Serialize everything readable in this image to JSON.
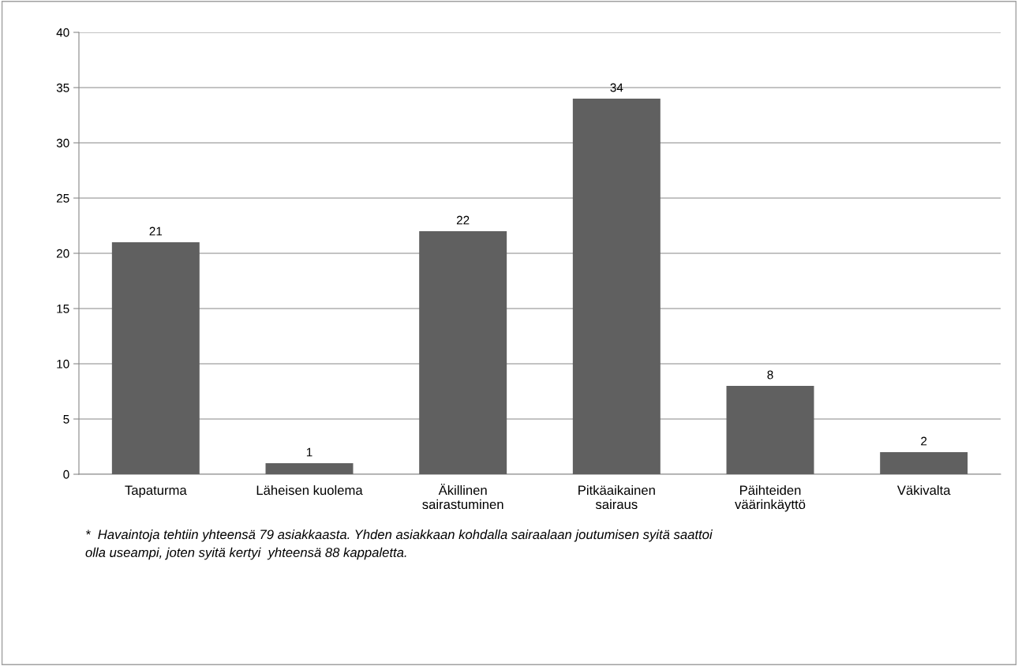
{
  "chart_data": {
    "type": "bar",
    "categories": [
      "Tapaturma",
      "Läheisen kuolema",
      "Äkillinen\nsairastuminen",
      "Pitkäaikainen\nsairaus",
      "Päihteiden\nväärinkäyttö",
      "Väkivalta"
    ],
    "values": [
      21,
      1,
      22,
      34,
      8,
      2
    ],
    "color": "#606060",
    "ylim": [
      0,
      40
    ],
    "yticks": [
      0,
      5,
      10,
      15,
      20,
      25,
      30,
      35,
      40
    ],
    "grid": "y",
    "data_labels": true,
    "legend": false,
    "annotations": [
      "*  Havaintoja tehtiin yhteensä 79 asiakkaasta. Yhden asiakkaan kohdalla sairaalaan joutumisen syitä saattoi\nolla useampi, joten syitä kertyi  yhteensä 88 kappaletta."
    ]
  }
}
